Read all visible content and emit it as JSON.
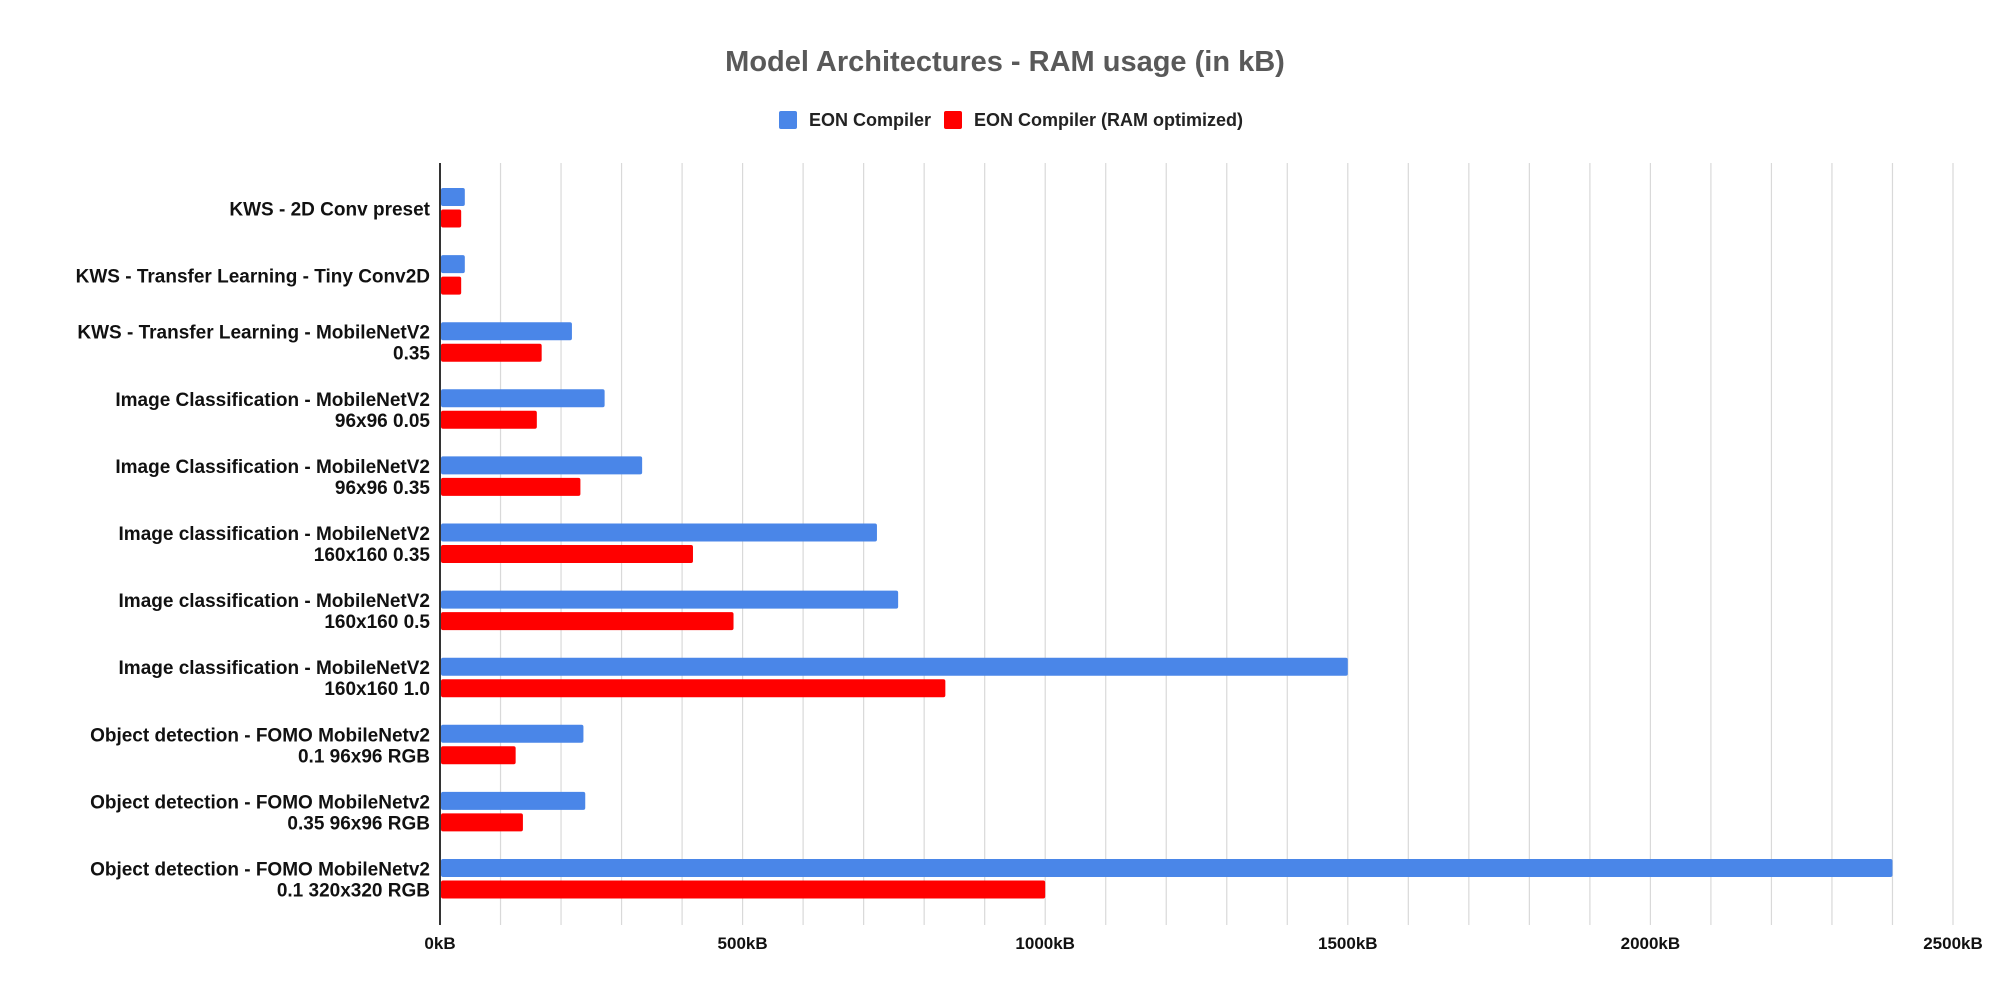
{
  "chart_data": {
    "type": "bar",
    "orientation": "horizontal",
    "title": "Model Architectures - RAM usage (in kB)",
    "xlabel": "",
    "ylabel": "",
    "xlim": [
      0,
      2500
    ],
    "grid": true,
    "legend_position": "top",
    "x_ticks": [
      "0kB",
      "500kB",
      "1000kB",
      "1500kB",
      "2000kB",
      "2500kB"
    ],
    "categories": [
      [
        "KWS - 2D Conv preset"
      ],
      [
        "KWS - Transfer Learning - Tiny Conv2D"
      ],
      [
        "KWS  - Transfer Learning - MobileNetV2",
        "0.35"
      ],
      [
        "Image Classification - MobileNetV2",
        "96x96 0.05"
      ],
      [
        "Image Classification - MobileNetV2",
        "96x96 0.35"
      ],
      [
        "Image classification - MobileNetV2",
        "160x160 0.35"
      ],
      [
        "Image classification - MobileNetV2",
        "160x160 0.5"
      ],
      [
        "Image classification - MobileNetV2",
        "160x160 1.0"
      ],
      [
        "Object detection - FOMO MobileNetv2",
        "0.1 96x96 RGB"
      ],
      [
        "Object detection - FOMO MobileNetv2",
        "0.35 96x96 RGB"
      ],
      [
        "Object detection - FOMO MobileNetv2",
        "0.1 320x320 RGB"
      ]
    ],
    "series": [
      {
        "name": "EON Compiler",
        "color": "#4a86e8",
        "values": [
          41,
          41,
          218,
          272,
          334,
          722,
          757,
          1500,
          237,
          240,
          2400
        ]
      },
      {
        "name": "EON Compiler (RAM optimized)",
        "color": "#ff0000",
        "values": [
          35,
          35,
          168,
          160,
          232,
          418,
          485,
          835,
          125,
          137,
          1000
        ]
      }
    ]
  }
}
